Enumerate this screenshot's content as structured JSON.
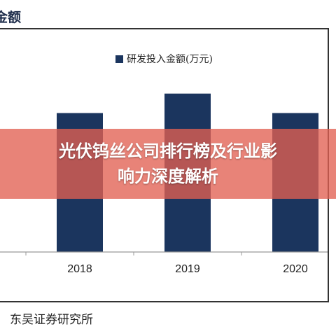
{
  "page": {
    "title": "金额",
    "source": "东吴证券研究所"
  },
  "overlay": {
    "line1": "光伏钨丝公司排行榜及行业影",
    "line2": "响力深度解析"
  },
  "colors": {
    "bar": "#1b355e",
    "overlay": "#e26052",
    "axis": "#999999"
  },
  "chart_data": {
    "type": "bar",
    "categories": [
      "2018",
      "2019",
      "2020"
    ],
    "series": [
      {
        "name": "研发投入金额(万元)",
        "values": [
          1000,
          1140,
          1000
        ]
      }
    ],
    "ylim": [
      0,
      1350
    ],
    "xlabel": "",
    "ylabel": "",
    "grid": false,
    "legend_position": "top-center"
  }
}
